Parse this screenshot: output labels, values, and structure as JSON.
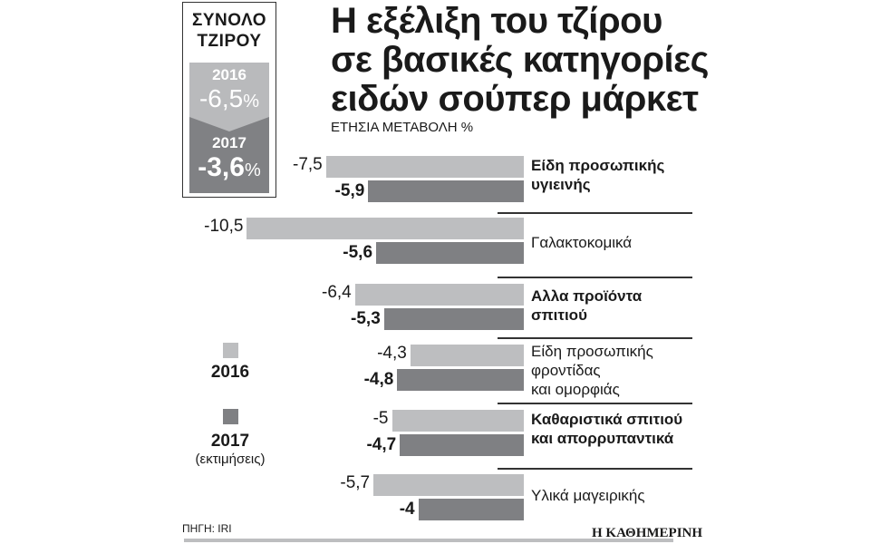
{
  "summary": {
    "title_line1": "ΣΥΝΟΛΟ",
    "title_line2": "ΤΖΙΡΟΥ",
    "year_2016": "2016",
    "value_2016": "-6,5",
    "year_2017": "2017",
    "value_2017": "-3,6",
    "pct": "%"
  },
  "title_lines": [
    "Η εξέλιξη του τζίρου",
    "σε βασικές κατηγορίες",
    "ειδών σούπερ μάρκετ"
  ],
  "subtitle": "ΕΤΗΣΙΑ ΜΕΤΑΒΟΛΗ %",
  "legend": {
    "y2016": "2016",
    "y2017": "2017",
    "note_2017": "(εκτιμήσεις)"
  },
  "labels_2016": [
    "-7,5",
    "-10,5",
    "-6,4",
    "-4,3",
    "-5",
    "-5,7"
  ],
  "labels_2017": [
    "-5,9",
    "-5,6",
    "-5,3",
    "-4,8",
    "-4,7",
    "-4"
  ],
  "categories": [
    [
      "Είδη προσωπικής",
      "υγιεινής"
    ],
    [
      "Γαλακτοκομικά"
    ],
    [
      "Αλλα προϊόντα",
      "σπιτιού"
    ],
    [
      "Είδη προσωπικής",
      "φροντίδας",
      "και ομορφιάς"
    ],
    [
      "Καθαριστικά σπιτιού",
      "και απορρυπαντικά"
    ],
    [
      "Υλικά μαγειρικής"
    ]
  ],
  "source": "ΠΗΓΗ: IRI",
  "brand": "Η ΚΑΘΗΜΕΡΙΝΗ",
  "colors": {
    "y2016": "#bdbec0",
    "y2017": "#7f8083"
  },
  "chart_data": {
    "type": "bar",
    "orientation": "horizontal",
    "title": "Η εξέλιξη του τζίρου σε βασικές κατηγορίες ειδών σούπερ μάρκετ",
    "subtitle": "ΕΤΗΣΙΑ ΜΕΤΑΒΟΛΗ %",
    "categories": [
      "Είδη προσωπικής υγιεινής",
      "Γαλακτοκομικά",
      "Αλλα προϊόντα σπιτιού",
      "Είδη προσωπικής φροντίδας και ομορφιάς",
      "Καθαριστικά σπιτιού και απορρυπαντικά",
      "Υλικά μαγειρικής"
    ],
    "series": [
      {
        "name": "2016",
        "values": [
          -7.5,
          -10.5,
          -6.4,
          -4.3,
          -5.0,
          -5.7
        ]
      },
      {
        "name": "2017 (εκτιμήσεις)",
        "values": [
          -5.9,
          -5.6,
          -5.3,
          -4.8,
          -4.7,
          -4.0
        ]
      }
    ],
    "totals": {
      "2016": -6.5,
      "2017": -3.6,
      "label": "ΣΥΝΟΛΟ ΤΖΙΡΟΥ"
    },
    "xlabel": "",
    "ylabel": "",
    "grid": false,
    "legend_position": "left",
    "source": "ΠΗΓΗ: IRI"
  }
}
